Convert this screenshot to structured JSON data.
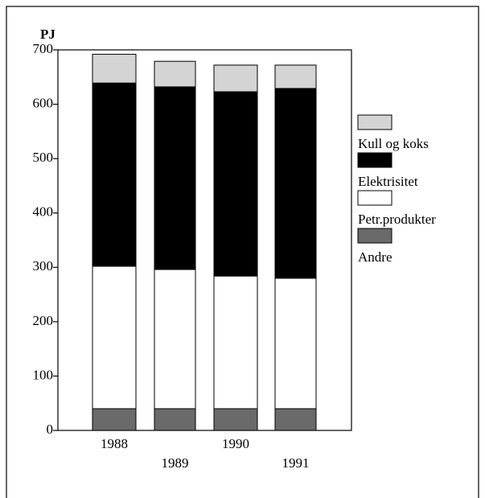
{
  "chart_data": {
    "type": "bar",
    "stacked": true,
    "y_label": "PJ",
    "categories": [
      "1988",
      "1989",
      "1990",
      "1991"
    ],
    "series": [
      {
        "name": "Andre",
        "color": "#6a6a6a",
        "values": [
          40,
          40,
          40,
          40
        ]
      },
      {
        "name": "Petr.produkter",
        "color": "#ffffff",
        "values": [
          262,
          256,
          244,
          240
        ]
      },
      {
        "name": "Elektrisitet",
        "color": "#000000",
        "values": [
          337,
          336,
          339,
          349
        ]
      },
      {
        "name": "Kull og koks",
        "color": "#d4d4d4",
        "values": [
          53,
          47,
          49,
          43
        ]
      }
    ],
    "ylim": [
      0,
      700
    ],
    "yticks": [
      0,
      100,
      200,
      300,
      400,
      500,
      600,
      700
    ],
    "legend": "right"
  }
}
